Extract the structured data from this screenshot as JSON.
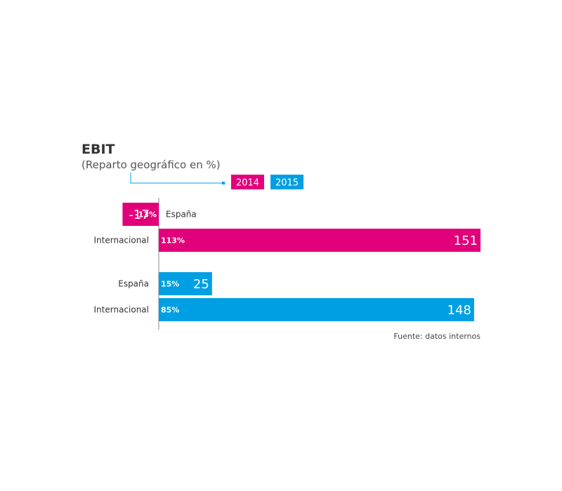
{
  "chart_data": {
    "type": "bar",
    "orientation": "horizontal",
    "title": "EBIT",
    "subtitle": "(Reparto geográfico en %)",
    "legend": [
      {
        "label": "2014",
        "color": "#e2007a"
      },
      {
        "label": "2015",
        "color": "#009fe3"
      }
    ],
    "series": [
      {
        "name": "2014",
        "color": "#e2007a",
        "bars": [
          {
            "category": "España",
            "value": -17,
            "pct_label": "-13%"
          },
          {
            "category": "Internacional",
            "value": 151,
            "pct_label": "113%"
          }
        ]
      },
      {
        "name": "2015",
        "color": "#009fe3",
        "bars": [
          {
            "category": "España",
            "value": 25,
            "pct_label": "15%"
          },
          {
            "category": "Internacional",
            "value": 148,
            "pct_label": "85%"
          }
        ]
      }
    ],
    "source": "Fuente: datos internos"
  }
}
